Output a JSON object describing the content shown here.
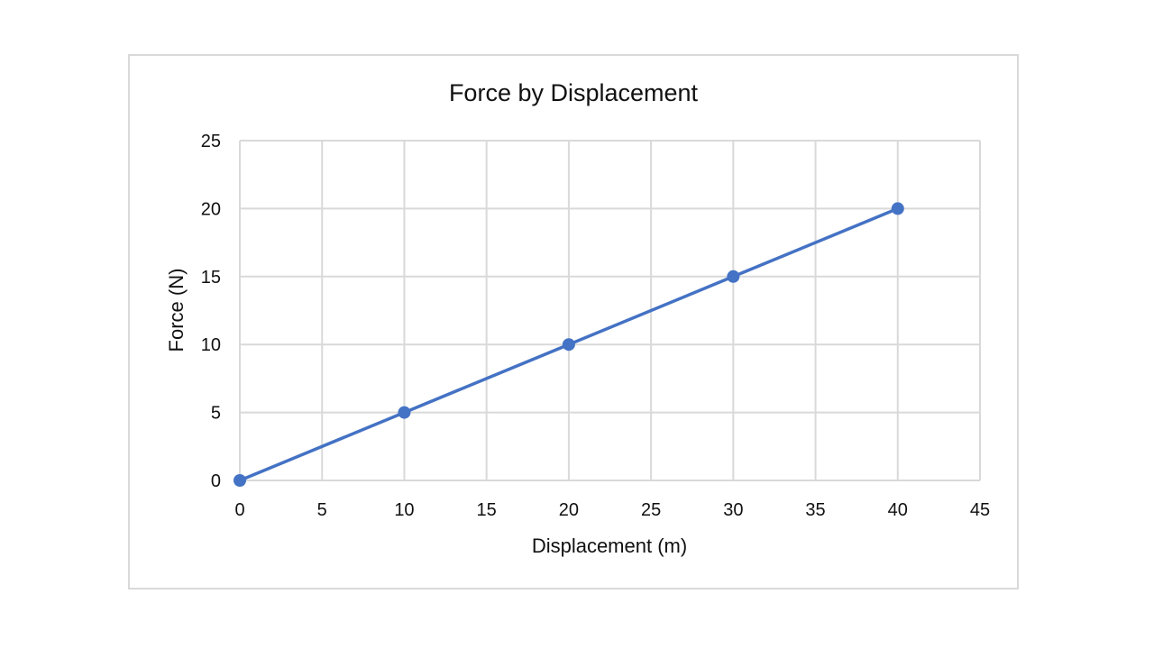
{
  "chart_data": {
    "type": "scatter",
    "title": "Force by Displacement",
    "xlabel": "Displacement (m)",
    "ylabel": "Force (N)",
    "xlim": [
      0,
      45
    ],
    "ylim": [
      0,
      25
    ],
    "x_ticks": [
      0,
      5,
      10,
      15,
      20,
      25,
      30,
      35,
      40,
      45
    ],
    "y_ticks": [
      0,
      5,
      10,
      15,
      20,
      25
    ],
    "grid": true,
    "legend": "none",
    "lines": "straight lines with markers",
    "series": [
      {
        "color": "#4472c4",
        "points": [
          {
            "x": 0,
            "y": 0
          },
          {
            "x": 10,
            "y": 5
          },
          {
            "x": 20,
            "y": 10
          },
          {
            "x": 30,
            "y": 15
          },
          {
            "x": 40,
            "y": 20
          }
        ]
      }
    ]
  }
}
